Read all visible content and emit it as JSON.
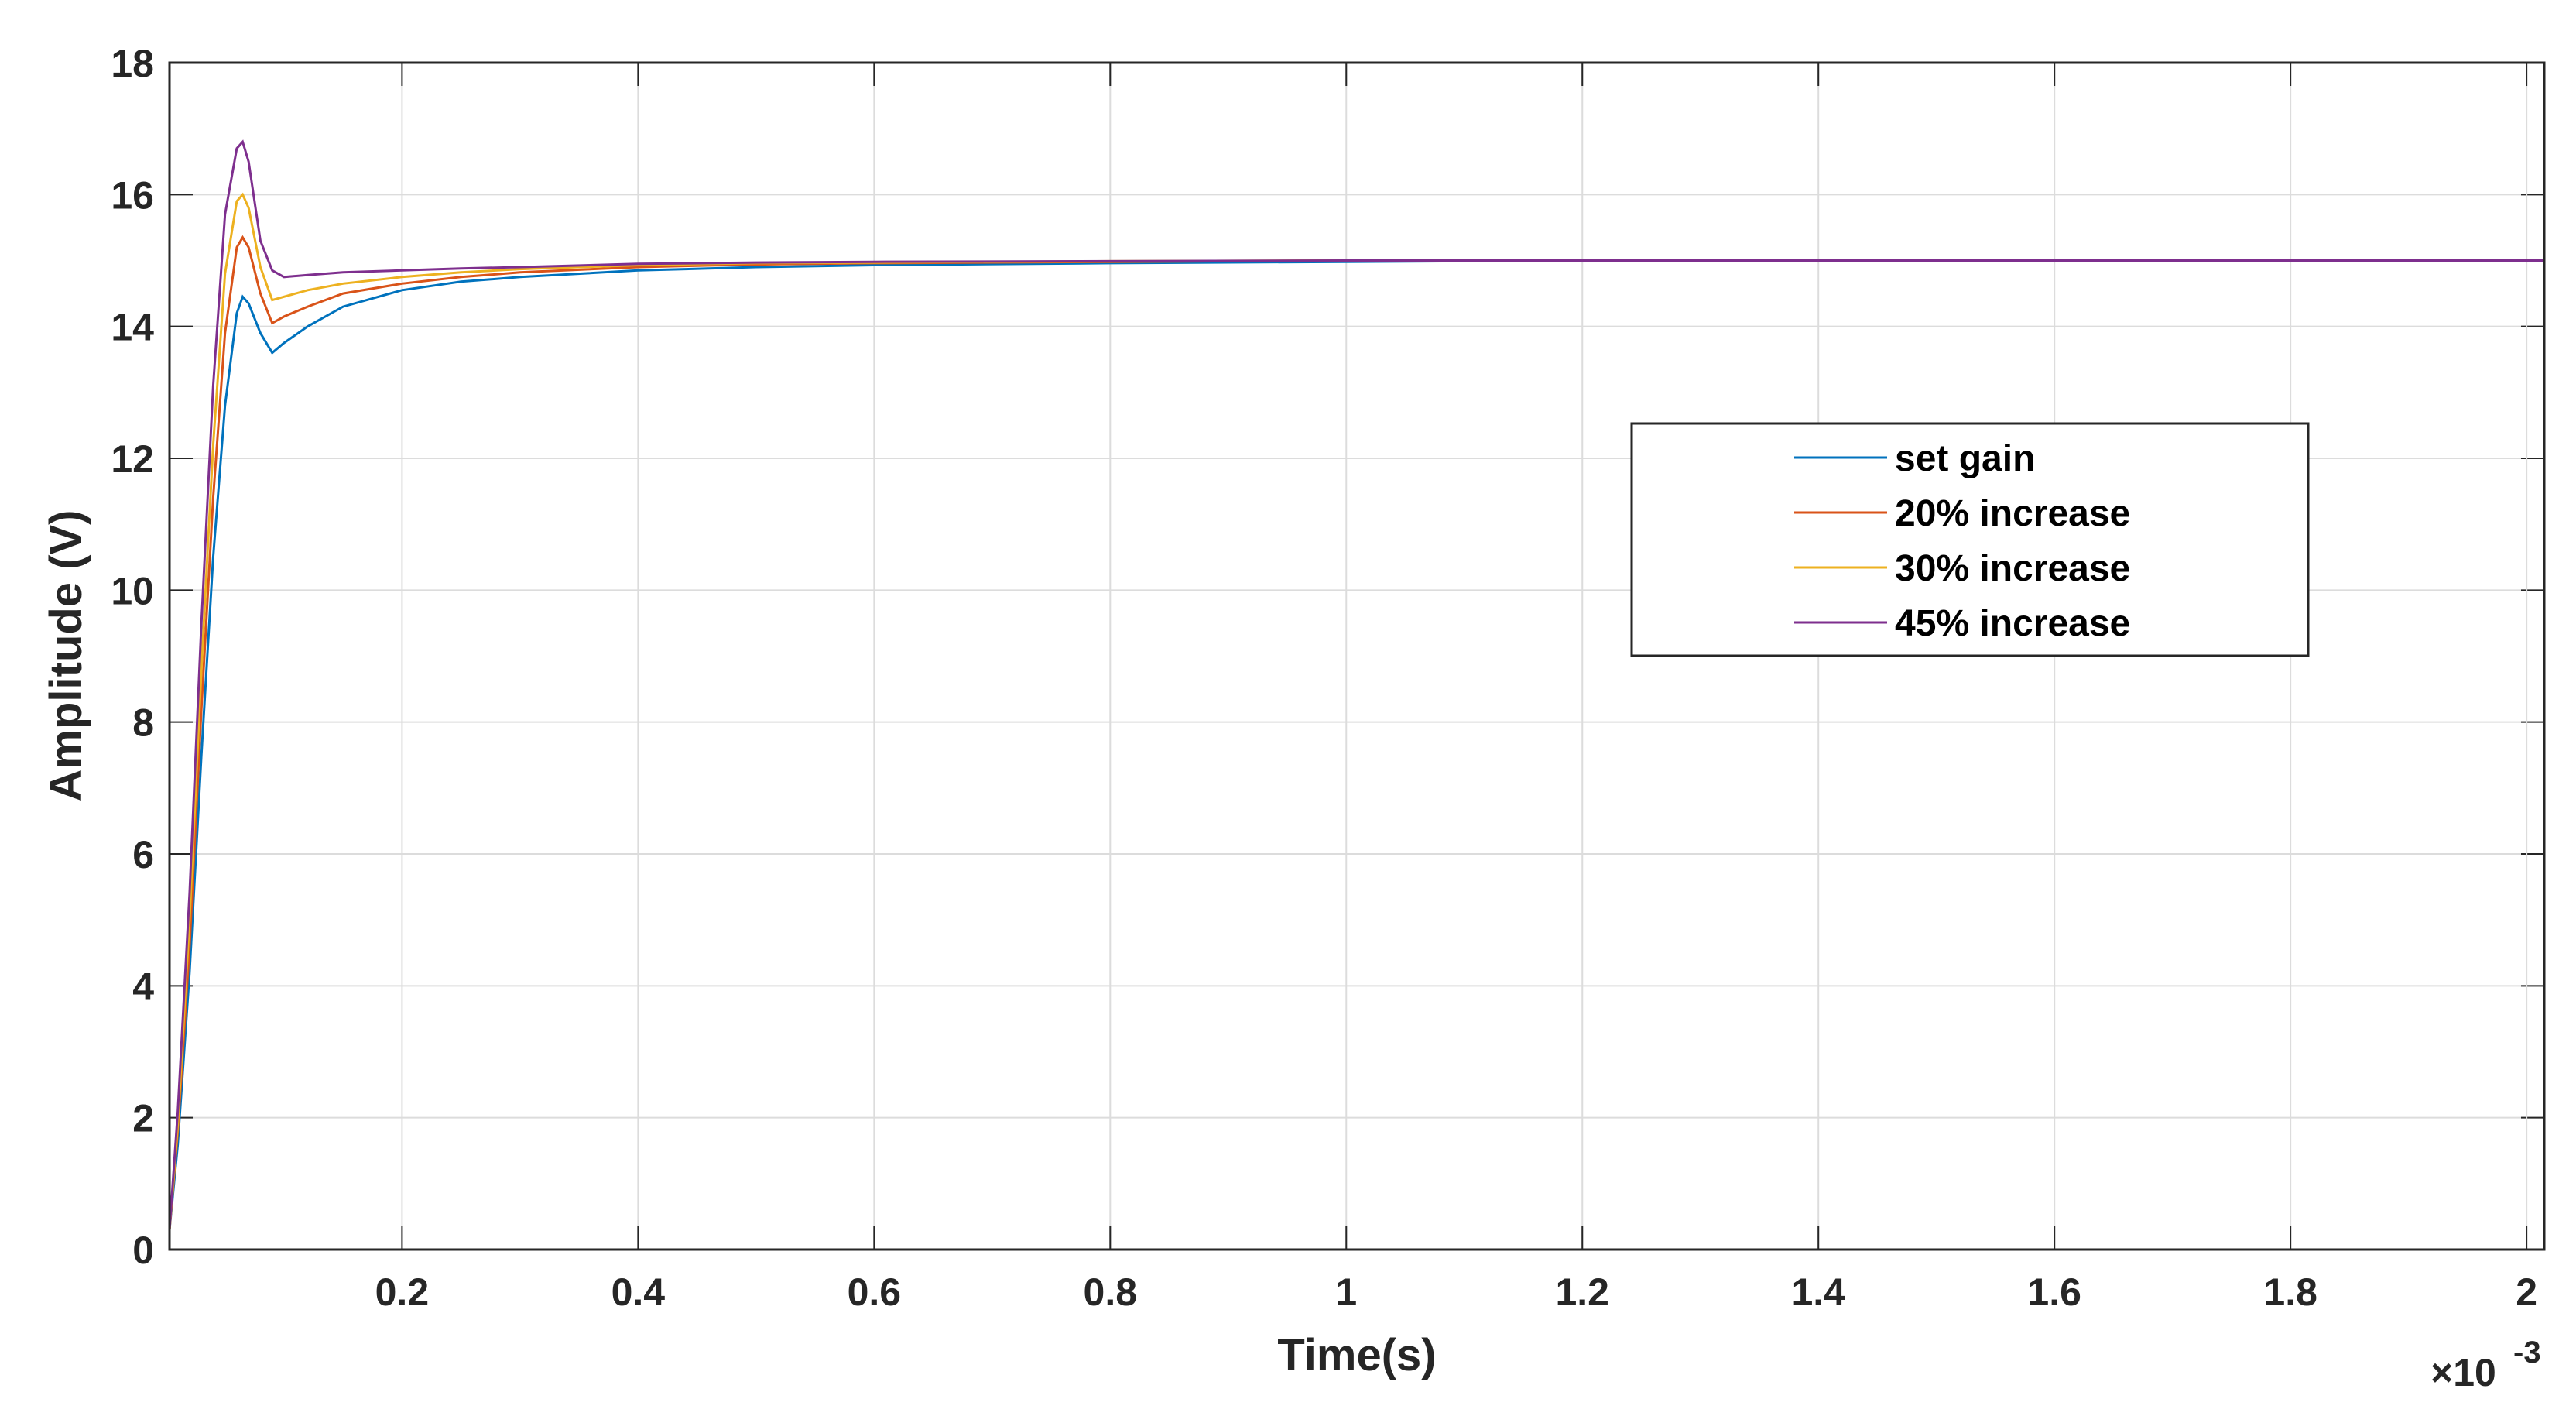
{
  "chart_data": {
    "type": "line",
    "x_label": "Time(s)",
    "y_label": "Amplitude (V)",
    "x_multiplier": "×10",
    "x_multiplier_exponent": "-3",
    "x": [
      0.003,
      0.01,
      0.02,
      0.03,
      0.04,
      0.05,
      0.06,
      0.065,
      0.07,
      0.08,
      0.09,
      0.1,
      0.12,
      0.15,
      0.2,
      0.25,
      0.3,
      0.4,
      0.5,
      0.6,
      0.8,
      1.0,
      1.2,
      1.4,
      1.6,
      1.8,
      2.0,
      2.015
    ],
    "series": [
      {
        "name": "set gain",
        "color": "#0072bd",
        "values": [
          0.3,
          1.6,
          4.2,
          7.5,
          10.5,
          12.8,
          14.2,
          14.45,
          14.35,
          13.9,
          13.6,
          13.75,
          14.0,
          14.3,
          14.55,
          14.68,
          14.75,
          14.85,
          14.9,
          14.93,
          14.96,
          14.98,
          15,
          15,
          15,
          15,
          15,
          15
        ]
      },
      {
        "name": "20% increase",
        "color": "#d95319",
        "values": [
          0.3,
          1.8,
          4.6,
          8.2,
          11.4,
          13.9,
          15.2,
          15.35,
          15.2,
          14.5,
          14.05,
          14.15,
          14.3,
          14.5,
          14.65,
          14.75,
          14.82,
          14.9,
          14.94,
          14.96,
          14.98,
          15,
          15,
          15,
          15,
          15,
          15,
          15
        ]
      },
      {
        "name": "30% increase",
        "color": "#edb120",
        "values": [
          0.3,
          1.9,
          5.0,
          8.8,
          12.2,
          14.8,
          15.9,
          16.0,
          15.8,
          14.9,
          14.4,
          14.45,
          14.55,
          14.65,
          14.75,
          14.82,
          14.87,
          14.93,
          14.96,
          14.97,
          14.99,
          15,
          15,
          15,
          15,
          15,
          15,
          15
        ]
      },
      {
        "name": "45% increase",
        "color": "#7e2f8e",
        "values": [
          0.3,
          2.1,
          5.4,
          9.5,
          13.1,
          15.7,
          16.7,
          16.8,
          16.5,
          15.3,
          14.85,
          14.75,
          14.78,
          14.82,
          14.85,
          14.88,
          14.9,
          14.95,
          14.97,
          14.98,
          14.99,
          15,
          15,
          15,
          15,
          15,
          15,
          15
        ]
      }
    ],
    "xlim": [
      0.003,
      2.015
    ],
    "xticks": [
      0.2,
      0.4,
      0.6,
      0.8,
      1,
      1.2,
      1.4,
      1.6,
      1.8,
      2
    ],
    "ylim": [
      0,
      18
    ],
    "yticks": [
      0,
      2,
      4,
      6,
      8,
      10,
      12,
      14,
      16,
      18
    ],
    "grid": true,
    "legend_position": "east"
  }
}
